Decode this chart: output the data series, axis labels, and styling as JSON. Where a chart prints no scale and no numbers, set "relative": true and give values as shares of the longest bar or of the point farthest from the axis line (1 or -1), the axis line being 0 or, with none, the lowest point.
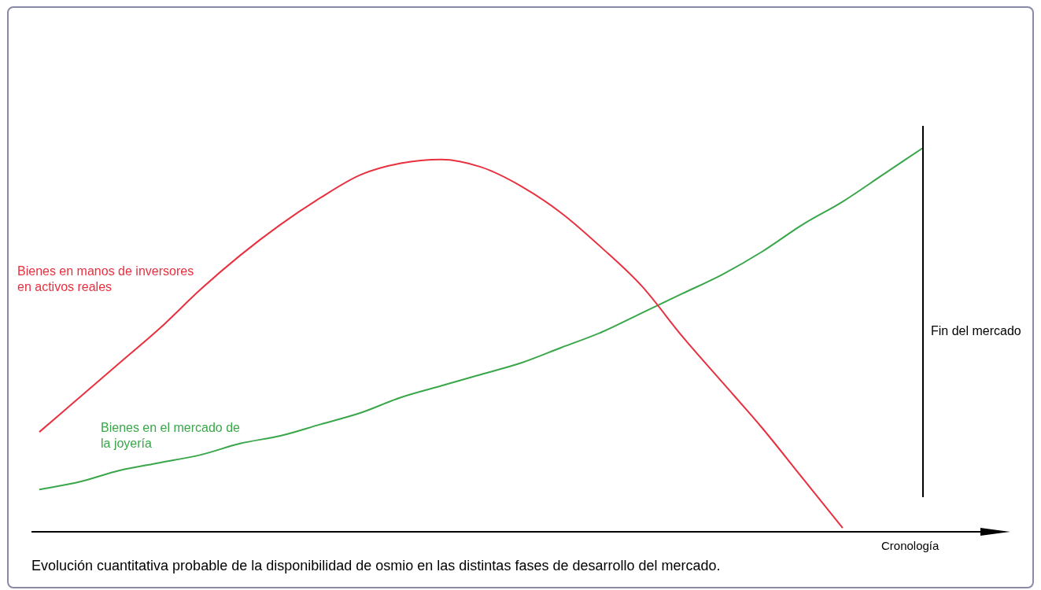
{
  "chart_data": {
    "type": "line",
    "relative": true,
    "legend": false,
    "marker": "none",
    "xlabel": "Cronología",
    "categories": [
      null,
      null,
      null,
      null,
      null,
      null,
      null,
      null,
      null,
      null,
      null,
      null,
      null,
      null,
      null,
      null,
      null,
      null,
      null,
      null,
      null,
      null,
      null
    ],
    "series": [
      {
        "name": "Bienes en manos de inversores en activos reales",
        "color": "#e8303f",
        "values": [
          0.26,
          0.35,
          0.44,
          0.53,
          0.63,
          0.72,
          0.8,
          0.87,
          0.93,
          0.96,
          0.97,
          0.95,
          0.9,
          0.83,
          0.74,
          0.64,
          0.51,
          0.39,
          0.27,
          0.14,
          0.01,
          null,
          null
        ]
      },
      {
        "name": "Bienes en el mercado de la joyería",
        "color": "#3aa64a",
        "values": [
          0.11,
          0.13,
          0.16,
          0.18,
          0.2,
          0.23,
          0.25,
          0.28,
          0.31,
          0.35,
          0.38,
          0.41,
          0.44,
          0.48,
          0.52,
          0.57,
          0.62,
          0.67,
          0.73,
          0.8,
          0.86,
          0.93,
          1
        ]
      }
    ],
    "annotations": [
      "Fin del mercado",
      "Evolución cuantitativa probable de la disponibilidad de osmio en las distintas fases de desarrollo del mercado."
    ]
  }
}
